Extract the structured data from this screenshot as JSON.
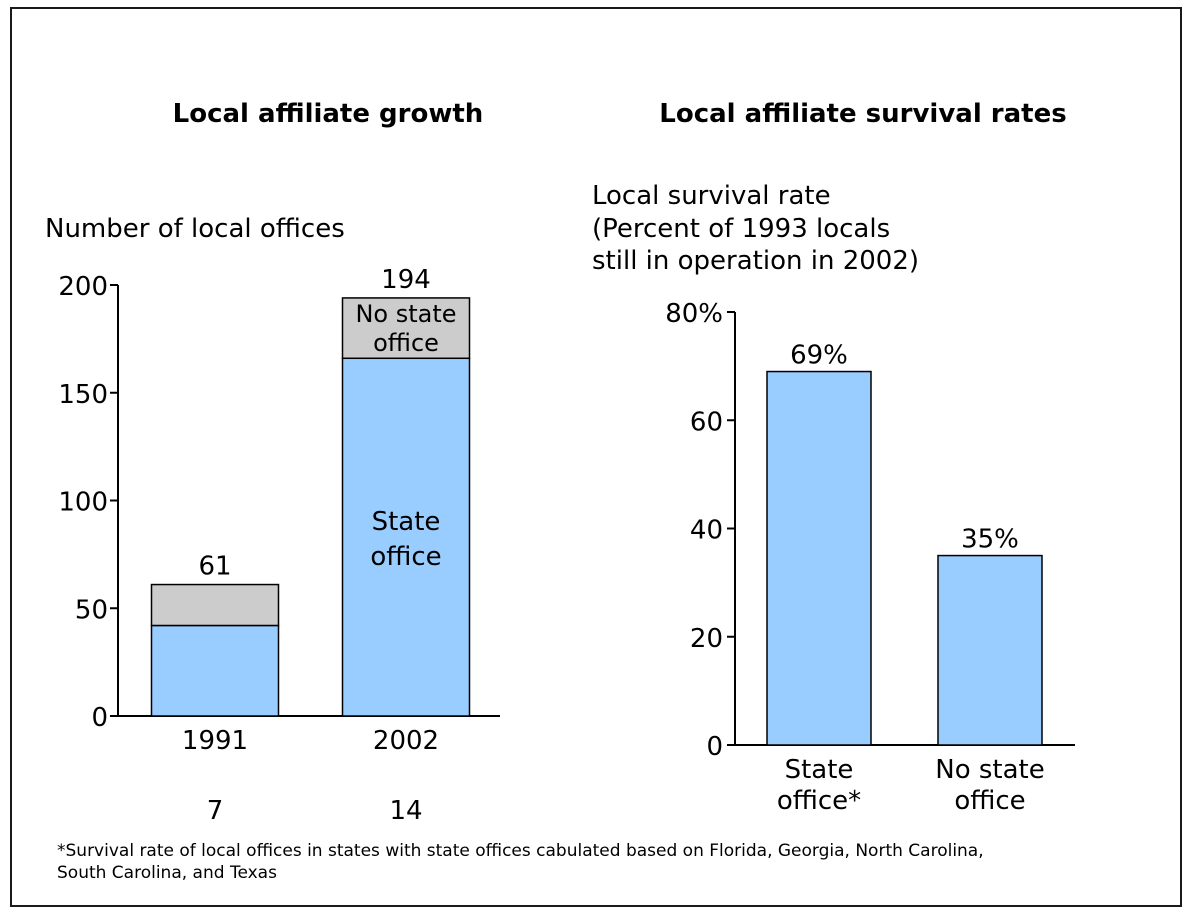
{
  "colors": {
    "state_office": "#99ccff",
    "no_state_office": "#cccccc",
    "axis": "#000000"
  },
  "chart_data": [
    {
      "type": "bar",
      "stacked": true,
      "title": "Local affiliate growth",
      "ylabel": "Number of local offices",
      "ylim": [
        0,
        200
      ],
      "yticks": [
        0,
        50,
        100,
        150,
        200
      ],
      "ytick_labels": [
        "0",
        "50",
        "100",
        "150",
        "200"
      ],
      "categories": [
        "1991",
        "2002"
      ],
      "series": [
        {
          "name": "State office",
          "values": [
            42,
            166
          ]
        },
        {
          "name": "No state office",
          "values": [
            19,
            28
          ]
        }
      ],
      "totals": [
        61,
        194
      ],
      "total_labels": [
        "61",
        "194"
      ],
      "segment_labels": {
        "state_office": [
          "State",
          "office"
        ],
        "no_state_office": [
          "No state",
          "office"
        ]
      },
      "below_axis_values": [
        "7",
        "14"
      ]
    },
    {
      "type": "bar",
      "title": "Local affiliate survival rates",
      "ylabel_lines": [
        "Local survival rate",
        "(Percent of 1993 locals",
        "still in operation in 2002)"
      ],
      "ylim": [
        0,
        80
      ],
      "yticks": [
        0,
        20,
        40,
        60,
        80
      ],
      "ytick_labels": [
        "0",
        "20",
        "40",
        "60",
        "80%"
      ],
      "categories": [
        [
          "State",
          "office*"
        ],
        [
          "No state",
          "office"
        ]
      ],
      "values": [
        69,
        35
      ],
      "value_labels": [
        "69%",
        "35%"
      ]
    }
  ],
  "footnote": {
    "line1": "*Survival rate of local offices in states with state offices cabulated based on Florida, Georgia, North Carolina,",
    "line2": "South Carolina, and Texas"
  }
}
